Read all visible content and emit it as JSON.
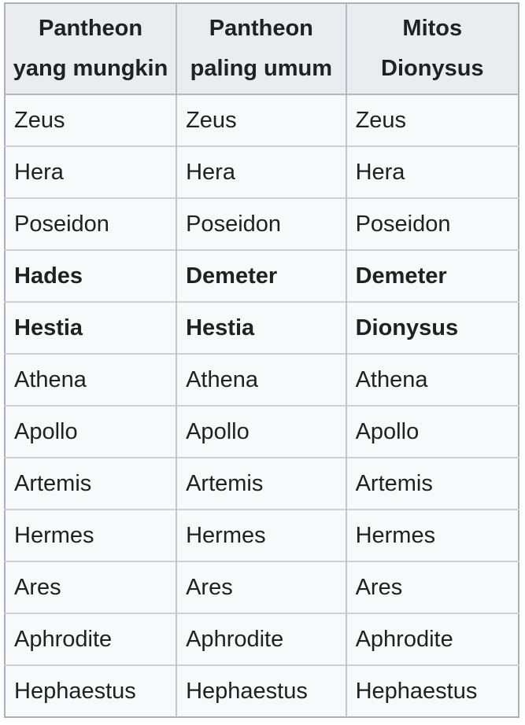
{
  "table": {
    "name": "olympian-pantheon-comparison",
    "headers": [
      "Pantheon yang mungkin",
      "Pantheon paling umum",
      "Mitos Dionysus"
    ],
    "rows": [
      {
        "bold": false,
        "cells": [
          "Zeus",
          "Zeus",
          "Zeus"
        ]
      },
      {
        "bold": false,
        "cells": [
          "Hera",
          "Hera",
          "Hera"
        ]
      },
      {
        "bold": false,
        "cells": [
          "Poseidon",
          "Poseidon",
          "Poseidon"
        ]
      },
      {
        "bold": true,
        "cells": [
          "Hades",
          "Demeter",
          "Demeter"
        ]
      },
      {
        "bold": true,
        "cells": [
          "Hestia",
          "Hestia",
          "Dionysus"
        ]
      },
      {
        "bold": false,
        "cells": [
          "Athena",
          "Athena",
          "Athena"
        ]
      },
      {
        "bold": false,
        "cells": [
          "Apollo",
          "Apollo",
          "Apollo"
        ]
      },
      {
        "bold": false,
        "cells": [
          "Artemis",
          "Artemis",
          "Artemis"
        ]
      },
      {
        "bold": false,
        "cells": [
          "Hermes",
          "Hermes",
          "Hermes"
        ]
      },
      {
        "bold": false,
        "cells": [
          "Ares",
          "Ares",
          "Ares"
        ]
      },
      {
        "bold": false,
        "cells": [
          "Aphrodite",
          "Aphrodite",
          "Aphrodite"
        ]
      },
      {
        "bold": false,
        "cells": [
          "Hephaestus",
          "Hephaestus",
          "Hephaestus"
        ]
      }
    ],
    "colors": {
      "header_bg": "#eaecf0",
      "cell_bg": "#f8f9fa",
      "text": "#202122",
      "outer_border": "#aab0b6",
      "column_border": "#c2c6cc",
      "row_border": "#cdd1d6",
      "page_bg": "#ffffff"
    }
  }
}
